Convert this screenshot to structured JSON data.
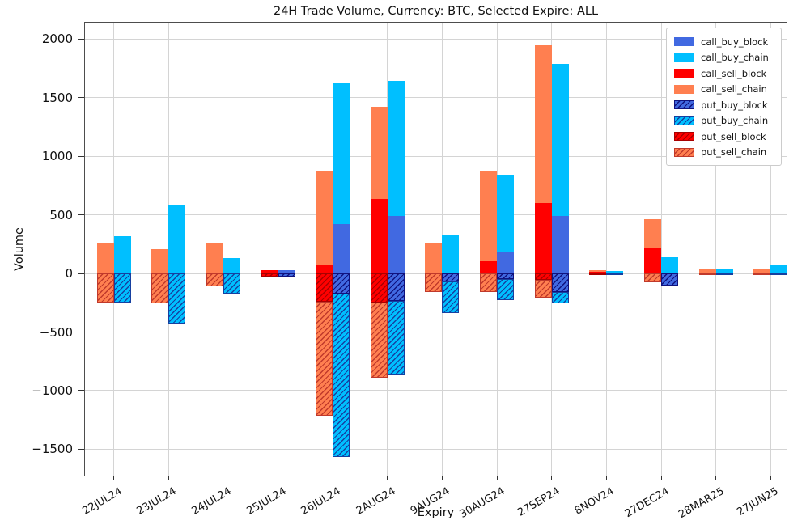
{
  "chart_data": {
    "type": "bar",
    "stacked": true,
    "title": "24H Trade Volume, Currency: BTC, Selected Expire: ALL",
    "xlabel": "Expiry",
    "ylabel": "Volume",
    "ylim": [
      -1725,
      2140
    ],
    "grid": true,
    "legend_position": "upper right",
    "yticks": [
      2000,
      1500,
      1000,
      500,
      0,
      -500,
      -1000,
      -1500
    ],
    "ytick_labels": [
      "2000",
      "1500",
      "1000",
      "500",
      "0",
      "−500",
      "−1000",
      "−1500"
    ],
    "categories": [
      "22JUL24",
      "23JUL24",
      "24JUL24",
      "25JUL24",
      "26JUL24",
      "2AUG24",
      "9AUG24",
      "30AUG24",
      "27SEP24",
      "8NOV24",
      "27DEC24",
      "28MAR25",
      "27JUN25"
    ],
    "bar_groups": {
      "sell_bar_stack_up": [
        "call_sell_block",
        "call_sell_chain"
      ],
      "sell_bar_stack_down": [
        "put_sell_block",
        "put_sell_chain"
      ],
      "buy_bar_stack_up": [
        "call_buy_block",
        "call_buy_chain"
      ],
      "buy_bar_stack_down": [
        "put_buy_block",
        "put_buy_chain"
      ]
    },
    "series": [
      {
        "name": "call_buy_block",
        "color": "#4169E1",
        "hatch": false,
        "hatch_color": null,
        "values": [
          0,
          0,
          0,
          25,
          420,
          490,
          0,
          185,
          490,
          0,
          0,
          0,
          0
        ]
      },
      {
        "name": "call_buy_chain",
        "color": "#00BFFF",
        "hatch": false,
        "hatch_color": null,
        "values": [
          320,
          580,
          135,
          0,
          1210,
          1150,
          335,
          660,
          1300,
          20,
          140,
          40,
          75
        ]
      },
      {
        "name": "call_sell_block",
        "color": "#FF0000",
        "hatch": false,
        "hatch_color": null,
        "values": [
          0,
          0,
          0,
          30,
          75,
          635,
          0,
          105,
          600,
          15,
          220,
          0,
          0
        ]
      },
      {
        "name": "call_sell_chain",
        "color": "#FF7F50",
        "hatch": false,
        "hatch_color": null,
        "values": [
          255,
          210,
          265,
          0,
          805,
          785,
          255,
          765,
          1350,
          15,
          245,
          35,
          35
        ]
      },
      {
        "name": "put_buy_block",
        "color": "#4169E1",
        "hatch": true,
        "hatch_color": "#10127E",
        "values": [
          0,
          0,
          0,
          -25,
          -175,
          -235,
          -70,
          -50,
          -160,
          0,
          -100,
          0,
          0
        ]
      },
      {
        "name": "put_buy_chain",
        "color": "#00BFFF",
        "hatch": true,
        "hatch_color": "#1640A0",
        "values": [
          -245,
          -425,
          -175,
          0,
          -1390,
          -625,
          -270,
          -180,
          -95,
          -10,
          0,
          -10,
          -10
        ]
      },
      {
        "name": "put_sell_block",
        "color": "#FF0000",
        "hatch": true,
        "hatch_color": "#A80000",
        "values": [
          0,
          0,
          0,
          -30,
          -240,
          -250,
          0,
          0,
          -55,
          -15,
          0,
          0,
          0
        ]
      },
      {
        "name": "put_sell_chain",
        "color": "#FF7F50",
        "hatch": true,
        "hatch_color": "#C0392B",
        "values": [
          -250,
          -255,
          -110,
          0,
          -975,
          -640,
          -160,
          -160,
          -155,
          0,
          -75,
          -10,
          -15
        ]
      }
    ],
    "legend_entries": [
      "call_buy_block",
      "call_buy_chain",
      "call_sell_block",
      "call_sell_chain",
      "put_buy_block",
      "put_buy_chain",
      "put_sell_block",
      "put_sell_chain"
    ]
  }
}
